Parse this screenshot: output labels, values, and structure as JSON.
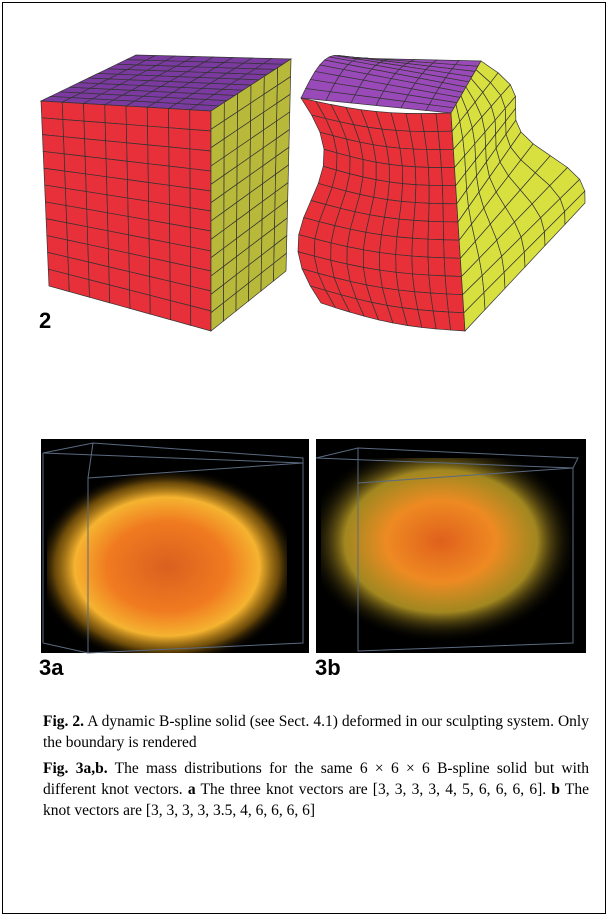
{
  "figures": {
    "fig2": {
      "label": "2"
    },
    "fig3": {
      "label_a": "3a",
      "label_b": "3b"
    }
  },
  "captions": [
    {
      "label": "Fig. 2.",
      "parts": [
        "A dynamic B-spline solid (see Sect. 4.1) deformed in our sculpting system. Only the boundary is rendered"
      ]
    },
    {
      "label": "Fig. 3a,b.",
      "parts": [
        "The mass distributions for the same 6 × 6 × 6 B-spline solid but with different knot vectors.",
        "a",
        "The three knot vectors are [3, 3, 3, 3, 4, 5, 6, 6, 6, 6].",
        "b",
        "The knot vectors are [3, 3, 3, 3, 3.5, 4, 6, 6, 6, 6]"
      ]
    }
  ]
}
